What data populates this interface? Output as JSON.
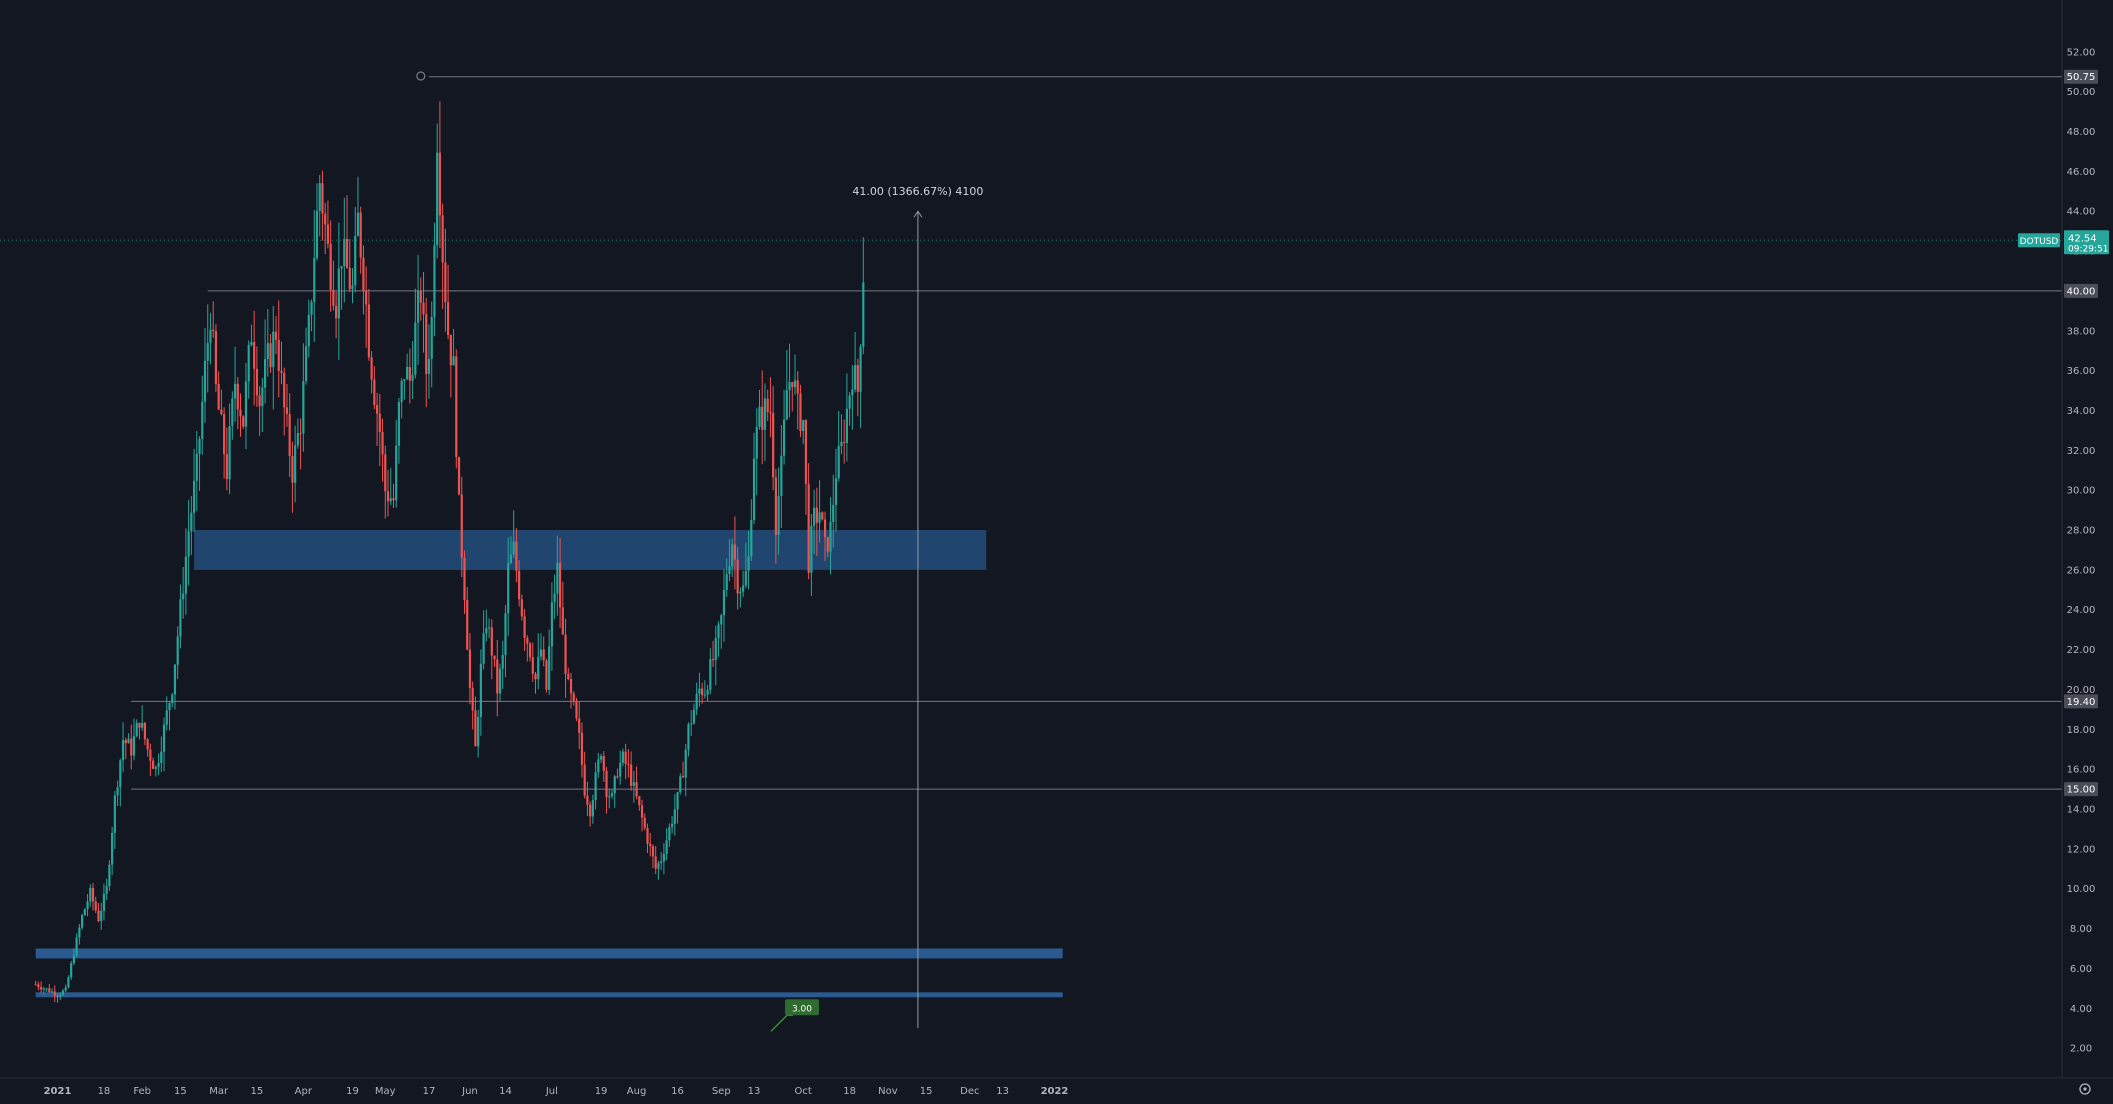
{
  "colors": {
    "background": "#131722",
    "up": "#26a69a",
    "down": "#ef5350",
    "zone": "#2962ff",
    "zone_band": "#234f7d",
    "axis_text": "#b2b5be",
    "level_label_bg": "#4a4e59",
    "price_label_bg": "#26a69a",
    "note_bg": "#2e6b2e"
  },
  "chart_data": {
    "type": "candlestick",
    "symbol": "DOTUSD",
    "last_price": "42.54",
    "countdown": "09:29:51",
    "y_range": [
      0.5,
      54.6
    ],
    "y_ticks": [
      "2.00",
      "4.00",
      "6.00",
      "8.00",
      "10.00",
      "12.00",
      "14.00",
      "16.00",
      "18.00",
      "20.00",
      "22.00",
      "24.00",
      "26.00",
      "28.00",
      "30.00",
      "32.00",
      "34.00",
      "36.00",
      "38.00",
      "40.00",
      "42.00",
      "44.00",
      "46.00",
      "48.00",
      "50.00",
      "52.00"
    ],
    "x_ticks": [
      {
        "label": "2021",
        "day": 0,
        "bold": true
      },
      {
        "label": "18",
        "day": 17
      },
      {
        "label": "Feb",
        "day": 31
      },
      {
        "label": "15",
        "day": 45
      },
      {
        "label": "Mar",
        "day": 59
      },
      {
        "label": "15",
        "day": 73
      },
      {
        "label": "Apr",
        "day": 90
      },
      {
        "label": "19",
        "day": 108
      },
      {
        "label": "May",
        "day": 120
      },
      {
        "label": "17",
        "day": 136
      },
      {
        "label": "Jun",
        "day": 151
      },
      {
        "label": "14",
        "day": 164
      },
      {
        "label": "Jul",
        "day": 181
      },
      {
        "label": "19",
        "day": 199
      },
      {
        "label": "Aug",
        "day": 212
      },
      {
        "label": "16",
        "day": 227
      },
      {
        "label": "Sep",
        "day": 243
      },
      {
        "label": "13",
        "day": 255
      },
      {
        "label": "Oct",
        "day": 273
      },
      {
        "label": "18",
        "day": 290
      },
      {
        "label": "Nov",
        "day": 304
      },
      {
        "label": "15",
        "day": 318
      },
      {
        "label": "Dec",
        "day": 334
      },
      {
        "label": "13",
        "day": 346
      },
      {
        "label": "2022",
        "day": 365,
        "bold": true
      }
    ],
    "horizontal_levels": [
      {
        "price": 50.75,
        "label": "50.75",
        "start_day": 136
      },
      {
        "price": 40.0,
        "label": "40.00",
        "start_day": 55
      },
      {
        "price": 19.4,
        "label": "19.40",
        "start_day": 27
      },
      {
        "price": 15.0,
        "label": "15.00",
        "start_day": 27
      }
    ],
    "zones": [
      {
        "from": 26.0,
        "to": 28.0,
        "start_day": 50,
        "end_day": 340
      },
      {
        "from": 6.5,
        "to": 7.0,
        "start_day": -8,
        "end_day": 368
      },
      {
        "from": 4.55,
        "to": 4.8,
        "start_day": -8,
        "end_day": 368
      }
    ],
    "measure": {
      "day": 315,
      "from": 3.0,
      "to": 44.0,
      "label": "41.00 (1366.67%) 4100"
    },
    "note": {
      "text": "3.00",
      "day": 270,
      "price": 4.0
    },
    "candle_range_days": [
      -8,
      295
    ],
    "path": [
      [
        -8,
        5.2
      ],
      [
        0,
        4.7
      ],
      [
        3,
        4.9
      ],
      [
        6,
        6.8
      ],
      [
        9,
        8.6
      ],
      [
        12,
        9.8
      ],
      [
        15,
        8.5
      ],
      [
        18,
        10.0
      ],
      [
        21,
        14.5
      ],
      [
        24,
        17.5
      ],
      [
        27,
        17.0
      ],
      [
        30,
        18.5
      ],
      [
        33,
        17.0
      ],
      [
        36,
        16.0
      ],
      [
        39,
        18.0
      ],
      [
        42,
        20.2
      ],
      [
        45,
        24.0
      ],
      [
        48,
        28.0
      ],
      [
        51,
        31.0
      ],
      [
        54,
        36.0
      ],
      [
        56,
        39.0
      ],
      [
        58,
        35.0
      ],
      [
        60,
        33.0
      ],
      [
        62,
        31.0
      ],
      [
        65,
        35.5
      ],
      [
        68,
        33.5
      ],
      [
        71,
        38.0
      ],
      [
        74,
        34.5
      ],
      [
        77,
        36.5
      ],
      [
        80,
        38.0
      ],
      [
        83,
        34.0
      ],
      [
        86,
        31.0
      ],
      [
        89,
        33.5
      ],
      [
        92,
        38.0
      ],
      [
        94,
        42.0
      ],
      [
        96,
        45.5
      ],
      [
        99,
        42.0
      ],
      [
        102,
        39.5
      ],
      [
        104,
        42.0
      ],
      [
        106,
        41.0
      ],
      [
        108,
        40.0
      ],
      [
        110,
        43.5
      ],
      [
        112,
        41.0
      ],
      [
        114,
        37.5
      ],
      [
        116,
        35.0
      ],
      [
        118,
        33.0
      ],
      [
        120,
        30.0
      ],
      [
        123,
        29.5
      ],
      [
        125,
        34.0
      ],
      [
        127,
        36.0
      ],
      [
        129,
        35.5
      ],
      [
        131,
        38.0
      ],
      [
        133,
        40.0
      ],
      [
        135,
        36.0
      ],
      [
        137,
        38.5
      ],
      [
        139,
        48.0
      ],
      [
        141,
        42.0
      ],
      [
        143,
        38.0
      ],
      [
        145,
        36.0
      ],
      [
        147,
        29.0
      ],
      [
        149,
        25.0
      ],
      [
        151,
        20.0
      ],
      [
        153,
        17.0
      ],
      [
        155,
        21.0
      ],
      [
        157,
        23.5
      ],
      [
        159,
        22.0
      ],
      [
        161,
        20.0
      ],
      [
        163,
        21.5
      ],
      [
        165,
        26.0
      ],
      [
        167,
        27.0
      ],
      [
        169,
        25.0
      ],
      [
        171,
        23.0
      ],
      [
        173,
        22.0
      ],
      [
        175,
        20.5
      ],
      [
        177,
        22.0
      ],
      [
        179,
        20.0
      ],
      [
        181,
        24.0
      ],
      [
        183,
        26.0
      ],
      [
        185,
        22.5
      ],
      [
        187,
        20.0
      ],
      [
        189,
        19.0
      ],
      [
        191,
        17.5
      ],
      [
        193,
        15.0
      ],
      [
        195,
        14.0
      ],
      [
        197,
        15.5
      ],
      [
        199,
        17.0
      ],
      [
        201,
        15.0
      ],
      [
        203,
        14.5
      ],
      [
        205,
        16.0
      ],
      [
        207,
        16.5
      ],
      [
        209,
        16.0
      ],
      [
        211,
        15.0
      ],
      [
        213,
        14.0
      ],
      [
        215,
        13.0
      ],
      [
        217,
        12.0
      ],
      [
        219,
        11.0
      ],
      [
        221,
        11.5
      ],
      [
        223,
        12.5
      ],
      [
        225,
        13.5
      ],
      [
        227,
        14.5
      ],
      [
        229,
        16.0
      ],
      [
        231,
        18.0
      ],
      [
        233,
        19.0
      ],
      [
        235,
        20.0
      ],
      [
        237,
        20.0
      ],
      [
        239,
        21.0
      ],
      [
        241,
        22.0
      ],
      [
        243,
        23.5
      ],
      [
        245,
        26.0
      ],
      [
        247,
        27.5
      ],
      [
        249,
        25.5
      ],
      [
        251,
        25.0
      ],
      [
        253,
        26.5
      ],
      [
        255,
        32.0
      ],
      [
        257,
        33.5
      ],
      [
        259,
        34.0
      ],
      [
        261,
        34.0
      ],
      [
        263,
        28.5
      ],
      [
        265,
        31.0
      ],
      [
        267,
        35.0
      ],
      [
        269,
        36.0
      ],
      [
        271,
        34.0
      ],
      [
        273,
        33.5
      ],
      [
        275,
        26.5
      ],
      [
        277,
        28.5
      ],
      [
        279,
        29.0
      ],
      [
        281,
        27.0
      ],
      [
        283,
        28.0
      ],
      [
        285,
        31.0
      ],
      [
        287,
        32.0
      ],
      [
        289,
        34.0
      ],
      [
        291,
        36.0
      ],
      [
        293,
        35.0
      ],
      [
        295,
        41.0
      ],
      [
        297,
        43.0
      ],
      [
        299,
        42.0
      ],
      [
        301,
        44.0
      ],
      [
        303,
        44.5
      ],
      [
        305,
        43.5
      ],
      [
        307,
        44.5
      ],
      [
        309,
        43.0
      ],
      [
        311,
        42.5
      ],
      [
        313,
        44.0
      ],
      [
        315,
        41.0
      ]
    ]
  }
}
